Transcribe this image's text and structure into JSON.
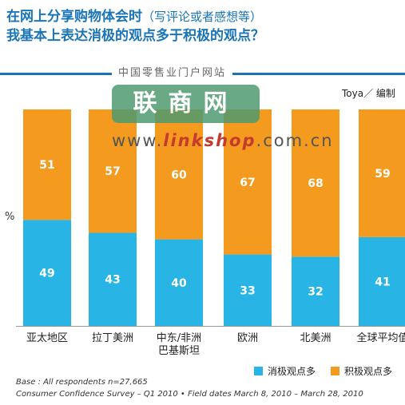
{
  "title_line1_main": "在网上分享购物体会时",
  "title_line1_sub": "（写评论或者感想等）",
  "title_line2": "我基本上表达消极的观点多于积极的观点？",
  "watermark": {
    "tagline": "中国零售业门户网站",
    "logo": "联商网",
    "url_pre": "www.",
    "url_brand": "linkshop",
    "url_post": ".com.cn"
  },
  "credit": "Toya／ 编制",
  "unit": "%",
  "footnotes": [
    "Base : All respondents n=27,665",
    "Consumer Confidence Survey – Q1 2010 • Field dates March 8, 2010 – March 28, 2010"
  ],
  "colors": {
    "negative": "#29b4e6",
    "positive": "#f39a1f",
    "title": "#1a75b8"
  },
  "chart_data": {
    "type": "bar",
    "stacked": true,
    "categories": [
      "亚太地区",
      "拉丁美洲",
      "中东/非洲巴基斯坦",
      "欧洲",
      "北美洲",
      "全球平均值"
    ],
    "category_lines": [
      [
        "亚太地区"
      ],
      [
        "拉丁美洲"
      ],
      [
        "中东/非洲",
        "巴基斯坦"
      ],
      [
        "欧洲"
      ],
      [
        "北美洲"
      ],
      [
        "全球平均值"
      ]
    ],
    "series": [
      {
        "name": "消极观点多",
        "values": [
          49,
          43,
          40,
          33,
          32,
          41
        ]
      },
      {
        "name": "积极观点多",
        "values": [
          51,
          57,
          60,
          67,
          68,
          59
        ]
      }
    ],
    "ylim": [
      0,
      100
    ],
    "legend": "bottom-right"
  }
}
